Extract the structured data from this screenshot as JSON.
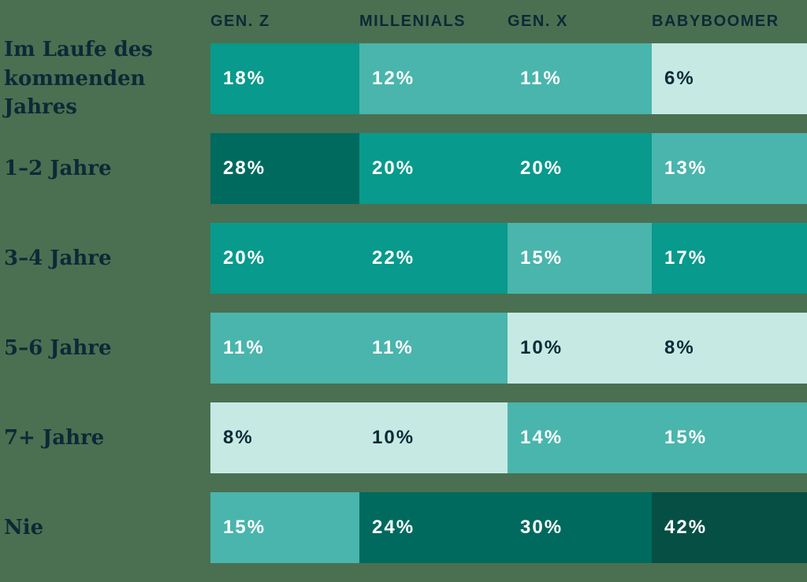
{
  "colors": {
    "bg": "#4A7051",
    "label_text": "#0D2937",
    "level1": "#C6EAE3",
    "level2": "#4AB5AC",
    "level3": "#089A8C",
    "level4": "#006A5E",
    "level5": "#064F45",
    "text_on_dark": "#FFFFFF"
  },
  "table": {
    "columns": [
      "GEN. Z",
      "MILLENIALS",
      "GEN. X",
      "BABYBOOMER"
    ],
    "rows": [
      {
        "label": "Im Laufe des kommenden Jahres",
        "values": [
          "18%",
          "12%",
          "11%",
          "6%"
        ]
      },
      {
        "label": "1–2 Jahre",
        "values": [
          "28%",
          "20%",
          "20%",
          "13%"
        ]
      },
      {
        "label": "3–4 Jahre",
        "values": [
          "20%",
          "22%",
          "15%",
          "17%"
        ]
      },
      {
        "label": "5–6 Jahre",
        "values": [
          "11%",
          "11%",
          "10%",
          "8%"
        ]
      },
      {
        "label": "7+ Jahre",
        "values": [
          "8%",
          "10%",
          "14%",
          "15%"
        ]
      },
      {
        "label": "Nie",
        "values": [
          "15%",
          "24%",
          "30%",
          "42%"
        ]
      }
    ]
  },
  "chart_data": {
    "type": "heatmap",
    "title": "",
    "categories": [
      "GEN. Z",
      "MILLENIALS",
      "GEN. X",
      "BABYBOOMER"
    ],
    "row_labels": [
      "Im Laufe des kommenden Jahres",
      "1–2 Jahre",
      "3–4 Jahre",
      "5–6 Jahre",
      "7+ Jahre",
      "Nie"
    ],
    "unit": "%",
    "series": [
      {
        "name": "Im Laufe des kommenden Jahres",
        "values": [
          18,
          12,
          11,
          6
        ]
      },
      {
        "name": "1–2 Jahre",
        "values": [
          28,
          20,
          20,
          13
        ]
      },
      {
        "name": "3–4 Jahre",
        "values": [
          20,
          22,
          15,
          17
        ]
      },
      {
        "name": "5–6 Jahre",
        "values": [
          11,
          11,
          10,
          8
        ]
      },
      {
        "name": "7+ Jahre",
        "values": [
          8,
          10,
          14,
          15
        ]
      },
      {
        "name": "Nie",
        "values": [
          15,
          24,
          30,
          42
        ]
      }
    ],
    "legend": "none",
    "grid": "off",
    "color_scale_buckets": {
      "6-10": "#C6EAE3",
      "11-15": "#4AB5AC",
      "17-22": "#089A8C",
      "24-30": "#006A5E",
      "42": "#064F45"
    }
  }
}
